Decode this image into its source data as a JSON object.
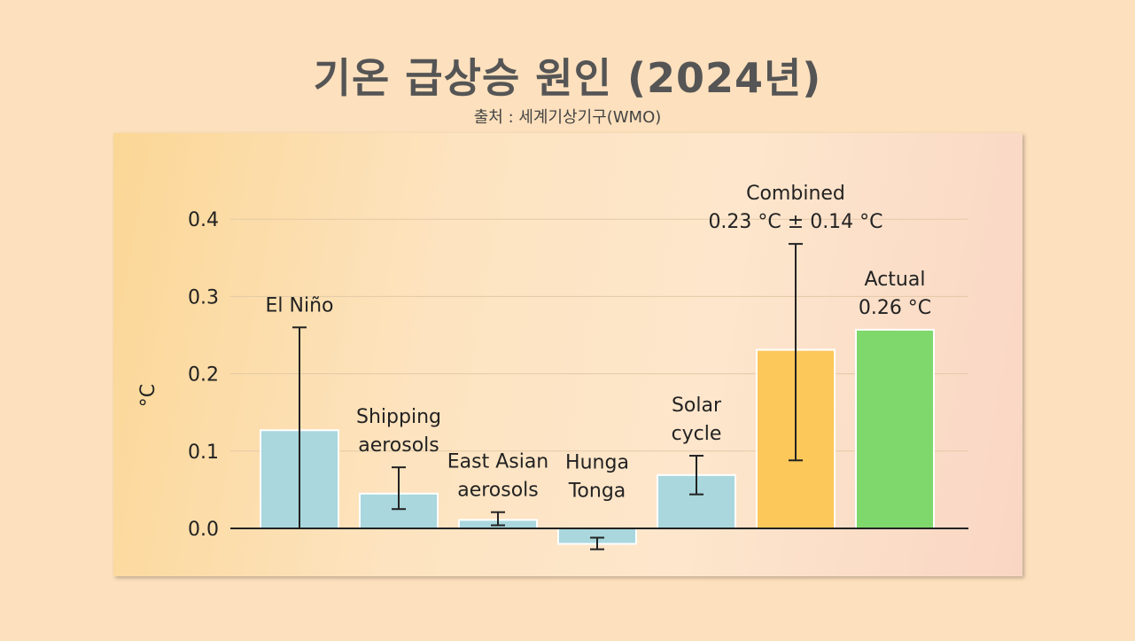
{
  "title": "기온 급상승 원인 (2024년)",
  "source": "출처 : 세계기상기구(WMO)",
  "chart_data": {
    "type": "bar",
    "ylabel": "°C",
    "xlabel": "",
    "ylim": [
      -0.04,
      0.44
    ],
    "yticks": [
      "0.0",
      "0.1",
      "0.2",
      "0.3",
      "0.4"
    ],
    "grid": true,
    "categories": [
      {
        "label": [
          "El Niño"
        ],
        "value": 0.127,
        "err_low": 0.0,
        "err_high": 0.26,
        "color": "#a9d7dd"
      },
      {
        "label": [
          "Shipping",
          "aerosols"
        ],
        "value": 0.045,
        "err_low": 0.025,
        "err_high": 0.079,
        "color": "#a9d7dd"
      },
      {
        "label": [
          "East Asian",
          "aerosols"
        ],
        "value": 0.011,
        "err_low": 0.004,
        "err_high": 0.021,
        "color": "#a9d7dd"
      },
      {
        "label": [
          "Hunga",
          "Tonga"
        ],
        "value": -0.02,
        "err_low": -0.027,
        "err_high": -0.012,
        "color": "#a9d7dd"
      },
      {
        "label": [
          "Solar",
          "cycle"
        ],
        "value": 0.069,
        "err_low": 0.044,
        "err_high": 0.094,
        "color": "#a9d7dd"
      },
      {
        "label": [
          "Combined",
          "0.23 °C ± 0.14 °C"
        ],
        "value": 0.231,
        "err_low": 0.088,
        "err_high": 0.368,
        "color": "#fcc85a"
      },
      {
        "label": [
          "Actual",
          "0.26 °C"
        ],
        "value": 0.257,
        "color": "#7fd86c"
      }
    ]
  }
}
